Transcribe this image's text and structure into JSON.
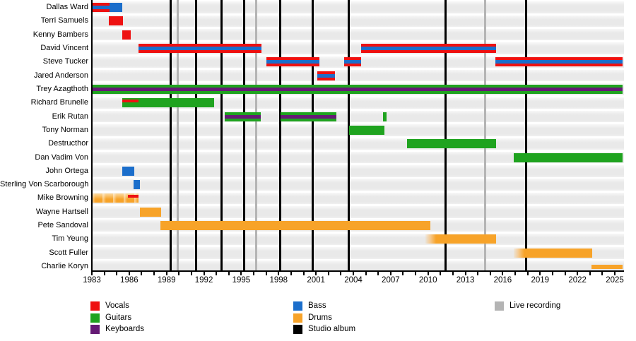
{
  "chart_data": {
    "type": "timeline",
    "title": "",
    "x_axis": {
      "min_year": 1983,
      "max_year": 2025.7,
      "tick_every_years": 1,
      "label_every_years": 3,
      "tick_labels": [
        "1983",
        "1986",
        "1989",
        "1992",
        "1995",
        "1998",
        "2001",
        "2004",
        "2007",
        "2010",
        "2013",
        "2016",
        "2019",
        "2022",
        "2025"
      ]
    },
    "colors": {
      "vocals": "#ee1111",
      "guitars": "#1fa31f",
      "keyboards": "#651a75",
      "bass": "#1b6ecb",
      "drums": "#f7a329",
      "studio_album": "#000000",
      "live_recording": "#b4b4b4",
      "band_gray": "#e9e9e9"
    },
    "members": [
      {
        "name": "Dallas Ward",
        "bars": [
          {
            "start": 1983.0,
            "end": 1984.4,
            "roles": [
              "vocals",
              "bass"
            ]
          },
          {
            "start": 1984.4,
            "end": 1985.45,
            "roles": [
              "bass"
            ]
          }
        ]
      },
      {
        "name": "Terri Samuels",
        "bars": [
          {
            "start": 1984.35,
            "end": 1985.5,
            "roles": [
              "vocals"
            ]
          }
        ]
      },
      {
        "name": "Kenny Bambers",
        "bars": [
          {
            "start": 1985.45,
            "end": 1986.1,
            "roles": [
              "vocals"
            ]
          }
        ]
      },
      {
        "name": "David Vincent",
        "bars": [
          {
            "start": 1986.75,
            "end": 1996.6,
            "roles": [
              "vocals",
              "bass"
            ]
          },
          {
            "start": 2004.6,
            "end": 2015.45,
            "roles": [
              "vocals",
              "bass"
            ]
          }
        ]
      },
      {
        "name": "Steve Tucker",
        "bars": [
          {
            "start": 1997.0,
            "end": 2001.3,
            "roles": [
              "vocals",
              "bass"
            ]
          },
          {
            "start": 2003.25,
            "end": 2004.6,
            "roles": [
              "vocals",
              "bass"
            ]
          },
          {
            "start": 2015.4,
            "end": 2025.65,
            "roles": [
              "vocals",
              "bass"
            ]
          }
        ]
      },
      {
        "name": "Jared Anderson",
        "bars": [
          {
            "start": 2001.1,
            "end": 2002.5,
            "roles": [
              "vocals",
              "bass"
            ]
          }
        ]
      },
      {
        "name": "Trey Azagthoth",
        "bars": [
          {
            "start": 1983.0,
            "end": 2025.65,
            "roles": [
              "guitars",
              "keyboards"
            ]
          }
        ]
      },
      {
        "name": "Richard Brunelle",
        "bars": [
          {
            "start": 1985.45,
            "end": 1992.8,
            "roles": [
              "guitars"
            ],
            "overlay": {
              "role": "vocals",
              "start": 1985.45,
              "end": 1986.75
            }
          }
        ]
      },
      {
        "name": "Erik Rutan",
        "bars": [
          {
            "start": 1993.65,
            "end": 1996.55,
            "roles": [
              "guitars",
              "keyboards"
            ]
          },
          {
            "start": 1998.15,
            "end": 2002.65,
            "roles": [
              "guitars",
              "keyboards"
            ]
          },
          {
            "start": 2006.4,
            "end": 2006.65,
            "roles": [
              "guitars"
            ]
          }
        ]
      },
      {
        "name": "Tony Norman",
        "bars": [
          {
            "start": 2003.65,
            "end": 2006.5,
            "roles": [
              "guitars"
            ]
          }
        ]
      },
      {
        "name": "Destructhor",
        "bars": [
          {
            "start": 2008.3,
            "end": 2015.45,
            "roles": [
              "guitars"
            ]
          }
        ]
      },
      {
        "name": "Dan Vadim Von",
        "bars": [
          {
            "start": 2016.9,
            "end": 2025.65,
            "roles": [
              "guitars"
            ]
          }
        ]
      },
      {
        "name": "John Ortega",
        "bars": [
          {
            "start": 1985.45,
            "end": 1986.4,
            "roles": [
              "bass"
            ]
          }
        ]
      },
      {
        "name": "Sterling Von Scarborough",
        "bars": [
          {
            "start": 1986.35,
            "end": 1986.85,
            "roles": [
              "bass"
            ]
          }
        ]
      },
      {
        "name": "Mike Browning",
        "bars": [
          {
            "start": 1983.0,
            "end": 1986.75,
            "roles": [
              "drums"
            ],
            "fade": "blur",
            "overlay": {
              "role": "vocals",
              "start": 1985.9,
              "end": 1986.75
            }
          }
        ]
      },
      {
        "name": "Wayne Hartsell",
        "bars": [
          {
            "start": 1986.85,
            "end": 1988.55,
            "roles": [
              "drums"
            ]
          }
        ]
      },
      {
        "name": "Pete Sandoval",
        "bars": [
          {
            "start": 1988.5,
            "end": 2010.2,
            "roles": [
              "drums"
            ]
          }
        ]
      },
      {
        "name": "Tim Yeung",
        "bars": [
          {
            "start": 2009.8,
            "end": 2015.45,
            "roles": [
              "drums"
            ],
            "fade": "left"
          }
        ]
      },
      {
        "name": "Scott Fuller",
        "bars": [
          {
            "start": 2016.9,
            "end": 2023.2,
            "roles": [
              "drums"
            ],
            "fade": "left"
          }
        ]
      },
      {
        "name": "Charlie Koryn",
        "bars": [
          {
            "start": 2023.15,
            "end": 2025.65,
            "roles": [
              "drums"
            ],
            "thin": true
          }
        ]
      }
    ],
    "studio_album_years": [
      1989.35,
      1991.4,
      1993.4,
      1995.25,
      1998.1,
      2000.75,
      2003.65,
      2011.4,
      2017.85
    ],
    "live_recording_years": [
      1989.9,
      1996.2,
      2014.6
    ],
    "legend": {
      "columns": [
        {
          "items": [
            {
              "label": "Vocals",
              "color_key": "vocals"
            },
            {
              "label": "Guitars",
              "color_key": "guitars"
            },
            {
              "label": "Keyboards",
              "color_key": "keyboards"
            }
          ]
        },
        {
          "items": [
            {
              "label": "Bass",
              "color_key": "bass"
            },
            {
              "label": "Drums",
              "color_key": "drums"
            },
            {
              "label": "Studio album",
              "color_key": "studio_album"
            }
          ]
        },
        {
          "items": [
            {
              "label": "Live recording",
              "color_key": "live_recording"
            }
          ]
        }
      ]
    }
  }
}
